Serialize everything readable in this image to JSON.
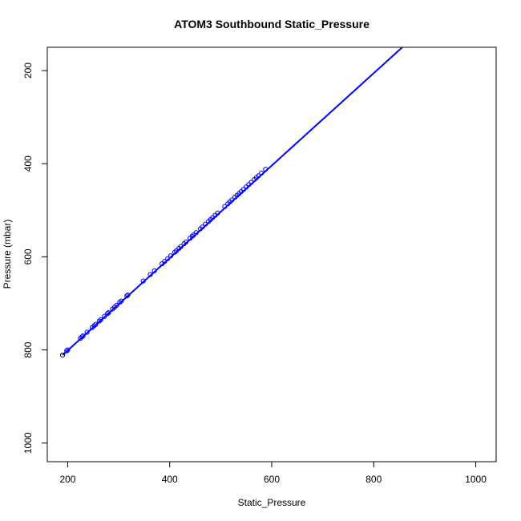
{
  "chart_data": {
    "type": "scatter",
    "title": "ATOM3 Southbound Static_Pressure",
    "xlabel": "Static_Pressure",
    "ylabel": "Pressure (mbar)",
    "xlim": [
      160,
      1040
    ],
    "ylim": [
      1040,
      150
    ],
    "y_reversed": true,
    "x_ticks": [
      200,
      400,
      600,
      800,
      1000
    ],
    "y_ticks": [
      200,
      400,
      600,
      800,
      1000
    ],
    "grid": false,
    "legend": "none",
    "point_color": "#0000ff",
    "line_color": "#0000ff",
    "outlier_color": "#000000",
    "fit_line": {
      "x": [
        190,
        860
      ],
      "y": [
        811,
        146
      ]
    },
    "series": [
      {
        "x": [
          190,
          198,
          200,
          225,
          228,
          230,
          238,
          248,
          252,
          255,
          262,
          265,
          272,
          278,
          280,
          288,
          292,
          296,
          302,
          305,
          316,
          318,
          348,
          362,
          370,
          385,
          390,
          396,
          402,
          410,
          413,
          418,
          422,
          428,
          432,
          440,
          444,
          447,
          452,
          460,
          464,
          470,
          476,
          480,
          484,
          489,
          494,
          508,
          514,
          518,
          522,
          528,
          532,
          536,
          540,
          545,
          550,
          555,
          560,
          566,
          570,
          574,
          580,
          588
        ],
        "y": [
          811,
          802,
          800,
          775,
          772,
          770,
          762,
          752,
          748,
          745,
          738,
          735,
          728,
          722,
          720,
          712,
          708,
          704,
          698,
          695,
          684,
          682,
          652,
          638,
          630,
          615,
          610,
          604,
          598,
          590,
          587,
          582,
          578,
          572,
          568,
          560,
          556,
          553,
          548,
          540,
          536,
          530,
          524,
          520,
          516,
          511,
          506,
          492,
          486,
          482,
          478,
          472,
          468,
          464,
          460,
          455,
          450,
          445,
          440,
          434,
          430,
          426,
          420,
          412
        ]
      }
    ]
  }
}
